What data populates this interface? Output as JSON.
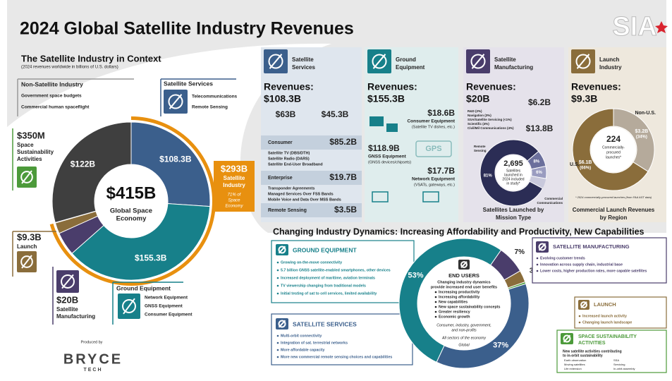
{
  "header": {
    "title": "2024 Global Satellite Industry Revenues",
    "logo": "SIA"
  },
  "context": {
    "title": "The Satellite Industry in Context",
    "subtitle": "(2024 revenues worldwide in billions of U.S. dollars)",
    "non_satellite": {
      "title": "Non-Satellite Industry",
      "items": [
        "Government space budgets",
        "Commercial human spaceflight"
      ]
    },
    "satellite_services": {
      "title": "Satellite Services",
      "items": [
        "Telecommunications",
        "Remote Sensing"
      ]
    },
    "sustainability_lines": [
      "Space",
      "Sustainability",
      "Activities"
    ],
    "total": "$415B",
    "total_lines": [
      "Global Space",
      "Economy"
    ],
    "industry": {
      "value": "$293B",
      "lines": [
        "Satellite",
        "Industry"
      ],
      "note": [
        "71% of",
        "Space",
        "Economy"
      ]
    },
    "segments": [
      {
        "value": 108.3,
        "label": "$108.3B",
        "color": "#3b5f8c"
      },
      {
        "value": 155.3,
        "label": "$155.3B",
        "color": "#17808a"
      },
      {
        "value": 20,
        "label": "$20B",
        "color": "#4a3d6b"
      },
      {
        "value": 9.3,
        "label": "$9.3B",
        "color": "#8a6d3b"
      },
      {
        "value": 0.35,
        "label": "$350M",
        "color": "#4c9a3a"
      },
      {
        "value": 122,
        "label": "$122B",
        "color": "#3f3f3f"
      }
    ],
    "launch_label": "Launch",
    "manufacturing_lines": [
      "Satellite",
      "Manufacturing"
    ],
    "ground": {
      "title": "Ground Equipment",
      "items": [
        "Network Equipment",
        "GNSS Equipment",
        "Consumer Equipment"
      ]
    },
    "credit": {
      "label": "Produced by",
      "name": "BRYCE",
      "sub": "TECH"
    }
  },
  "services": {
    "title": [
      "Satellite",
      "Services"
    ],
    "revenue_label": "Revenues:",
    "revenue": "$108.3B",
    "split": [
      "$63B",
      "$45.3B"
    ],
    "groups": [
      {
        "name": "Consumer",
        "value": "$85.2B",
        "items": [
          "Satellite TV (DBS/DTH)",
          "Satellite Radio (DARS)",
          "Satellite End-User Broadband"
        ]
      },
      {
        "name": "Enterprise",
        "value": "$19.7B",
        "items": [
          "Transponder Agreements",
          "Managed Services Over FSS Bands",
          "Mobile Voice and Data Over MSS Bands"
        ]
      },
      {
        "name": "Remote Sensing",
        "value": "$3.5B",
        "items": []
      }
    ]
  },
  "ground": {
    "title": [
      "Ground",
      "Equipment"
    ],
    "revenue_label": "Revenues:",
    "revenue": "$155.3B",
    "gps": "GPS",
    "items": [
      {
        "value": "$18.6B",
        "name": "Consumer Equipment",
        "note": "(Satellite TV dishes, etc.)"
      },
      {
        "value": "$118.9B",
        "name": "GNSS Equipment",
        "note": "(GNSS devices/chipsets)"
      },
      {
        "value": "$17.7B",
        "name": "Network Equipment",
        "note": "(VSATs, gateways, etc.)"
      }
    ]
  },
  "manufacturing": {
    "title": [
      "Satellite",
      "Manufacturing"
    ],
    "revenue_label": "Revenues:",
    "revenue": "$20B",
    "split": [
      "$6.2B",
      "$13.8B"
    ],
    "legend": [
      "R&D (2%)",
      "Navigation (3%)",
      "SSA/Satellite Servicing (<1%)",
      "Scientific (4%)",
      "Civil/Mil Communications (4%)"
    ],
    "segments": [
      {
        "value": 81,
        "label": "81%",
        "color": "#2b2d55"
      },
      {
        "value": 8,
        "label": "8%",
        "color": "#6b6f9c"
      },
      {
        "value": 6,
        "label": "6%",
        "color": "#9a9cc0"
      }
    ],
    "remote_label": [
      "Remote",
      "Sensing"
    ],
    "comm_label": [
      "Commercial",
      "Communications"
    ],
    "count": "2,695",
    "count_lines": [
      "Satellites",
      "launched in",
      "2024 included",
      "in study*"
    ],
    "caption": [
      "Satellites Launched by",
      "Mission Type"
    ]
  },
  "launch": {
    "title": [
      "Launch",
      "Industry"
    ],
    "revenue_label": "Revenues:",
    "revenue": "$9.3B",
    "segments": [
      {
        "region": "Non-U.S.",
        "amount": "$3.2B",
        "value": 34,
        "label": "(34%)",
        "color": "#b5aa9b"
      },
      {
        "region": "U.S.",
        "amount": "$6.1B",
        "value": 66,
        "label": "(66%)",
        "color": "#8a6d3b"
      }
    ],
    "count": "224",
    "count_lines": [
      "Commercially-",
      "procured",
      "launches*"
    ],
    "footnote": "* 2024 commercially-procured launches (from FAA AST data)",
    "caption": [
      "Commercial Launch Revenues",
      "by Region"
    ]
  },
  "dynamics": {
    "title": "Changing Industry Dynamics: Increasing Affordability and Productivity, New Capabilities",
    "ground": {
      "title": "GROUND EQUIPMENT",
      "items": [
        "Growing on-the-move connectivity",
        "5.7 billion GNSS satellite-enabled smartphones, other devices",
        "Increased deployment of maritime, aviation terminals",
        "TV viewership changing from traditional models",
        "Initial testing of sat to cell services, limited availability"
      ]
    },
    "services": {
      "title": "SATELLITE SERVICES",
      "items": [
        "Multi-orbit connectivity",
        "Integration of sat. terrestrial networks",
        "More affordable capacity",
        "More new commercial remote sensing choices and capabilities"
      ]
    },
    "center": {
      "title": "END USERS",
      "intro": [
        "Changing industry dynamics",
        "provide increased end user benefits"
      ],
      "items": [
        "Increasing productivity",
        "Increasing affordability",
        "New capabilities",
        "New space sustainability concepts",
        "Greater resiliency",
        "Economic growth"
      ],
      "sectors": [
        "Consumer, industry, government,",
        "and non-profits"
      ],
      "all": "All sectors of the economy",
      "global": "Global"
    },
    "segments": [
      {
        "value": 53,
        "label": "53%",
        "color": "#17808a"
      },
      {
        "value": 7,
        "label": "7%",
        "color": "#4a3d6b"
      },
      {
        "value": 3,
        "label": "3%",
        "color": "#8a6d3b"
      },
      {
        "value": 0.5,
        "label": "<1%",
        "color": "#4c9a3a"
      },
      {
        "value": 37,
        "label": "37%",
        "color": "#3b5f8c"
      }
    ],
    "manufacturing": {
      "title": "SATELLITE MANUFACTURING",
      "items": [
        "Evolving customer trends",
        "Innovation across supply chain, industrial base",
        "Lower costs, higher production rates, more capable satellites"
      ]
    },
    "launch": {
      "title": "LAUNCH",
      "items": [
        "Increased launch activity",
        "Changing launch landscape"
      ]
    },
    "sustainability": {
      "title": [
        "SPACE SUSTAINABILITY",
        "ACTIVITIES"
      ],
      "text": [
        "New satellite activities contributing",
        "to in-orbit sustainability"
      ],
      "items": [
        "Earth observation",
        "SSA",
        "Moving satellites",
        "Servicing",
        "Life extension",
        "In-orbit assembly"
      ]
    }
  }
}
